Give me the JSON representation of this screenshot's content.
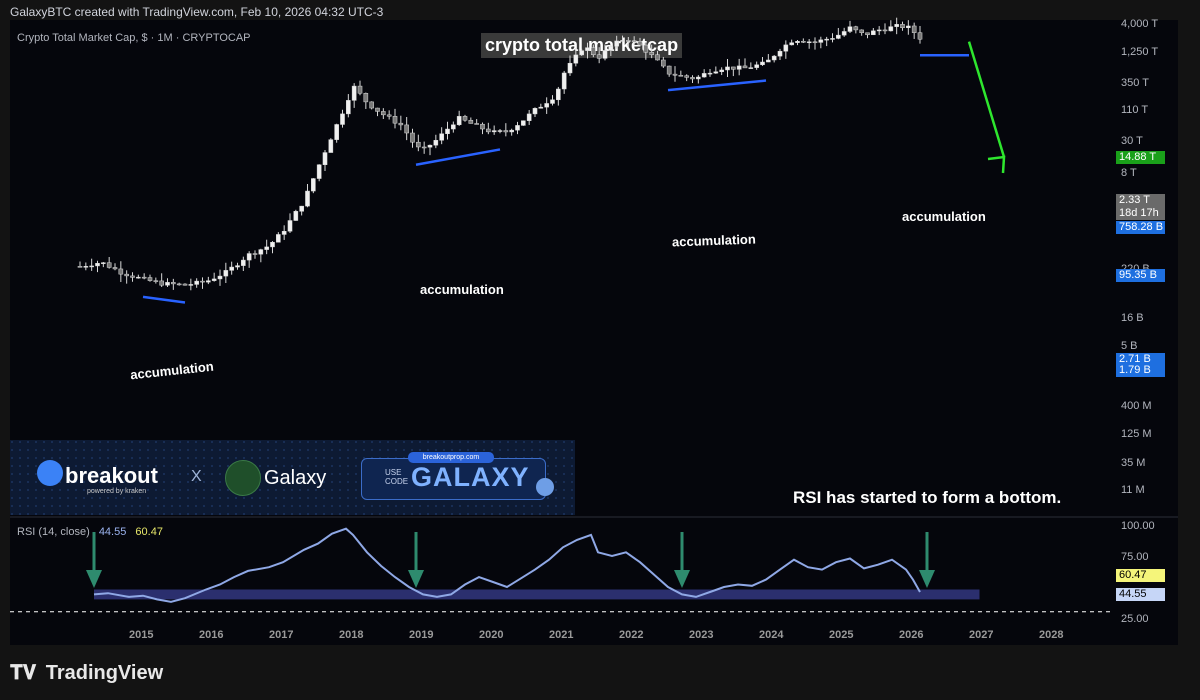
{
  "header": {
    "credit": "GalaxyBTC created with TradingView.com, Feb 10, 2026 04:32 UTC-3"
  },
  "symbol_line": "Crypto Total Market Cap, $ · 1M · CRYPTOCAP",
  "title": "crypto total marketcap",
  "annotations": {
    "accumulation": [
      "accumulation",
      "accumulation",
      "accumulation",
      "accumulation"
    ],
    "rsi_note": "RSI has started to form a bottom."
  },
  "banner": {
    "brand_left": "breakout",
    "powered_by": "powered by kraken",
    "x": "X",
    "brand_right": "Galaxy",
    "url": "breakoutprop.com",
    "use_code": "USE CODE",
    "code": "GALAXY"
  },
  "rsi": {
    "label": "RSI (14, close)",
    "value_1": "44.55",
    "value_2": "60.47"
  },
  "footer": {
    "brand": "TradingView"
  },
  "colors": {
    "candle": "#d8d8d8",
    "accumulation_line": "#2962ff",
    "arrow_green": "#2ee62e",
    "rsi_line": "#8fa8e6",
    "rsi_fill": "#2b2f6e",
    "arrow_rsi": "#2e8b6e"
  },
  "chart_data": [
    {
      "type": "candlestick",
      "title": "crypto total marketcap",
      "scale": "log",
      "price_axis_labels": [
        "4,000 T",
        "1,250 T",
        "350 T",
        "110 T",
        "30 T",
        "8 T",
        "220 B",
        "16 B",
        "5 B",
        "400 M",
        "125 M",
        "35 M",
        "11 M"
      ],
      "price_tags": [
        {
          "text": "14.88 T",
          "bg": "#1aa01a",
          "fg": "#ffffff"
        },
        {
          "text": "2.33 T",
          "bg": "#6a6a6a",
          "fg": "#ffffff"
        },
        {
          "text": "18d 17h",
          "bg": "#6a6a6a",
          "fg": "#ffffff"
        },
        {
          "text": "758.28 B",
          "bg": "#1e6fe0",
          "fg": "#ffffff"
        },
        {
          "text": "95.35 B",
          "bg": "#1e6fe0",
          "fg": "#ffffff"
        },
        {
          "text": "2.71 B",
          "bg": "#1e6fe0",
          "fg": "#ffffff"
        },
        {
          "text": "1.79 B",
          "bg": "#1e6fe0",
          "fg": "#ffffff"
        }
      ],
      "x_labels": [
        "2015",
        "2016",
        "2017",
        "2018",
        "2019",
        "2020",
        "2021",
        "2022",
        "2023",
        "2024",
        "2025",
        "2026",
        "2027",
        "2028"
      ],
      "close_path": [
        [
          2014.1,
          5.0
        ],
        [
          2014.4,
          5.6
        ],
        [
          2014.7,
          4.2
        ],
        [
          2015.0,
          3.5
        ],
        [
          2015.3,
          3.1
        ],
        [
          2015.6,
          3.0
        ],
        [
          2015.9,
          3.3
        ],
        [
          2016.2,
          4.3
        ],
        [
          2016.5,
          6.8
        ],
        [
          2016.8,
          8.8
        ],
        [
          2017.0,
          13
        ],
        [
          2017.3,
          30
        ],
        [
          2017.5,
          75
        ],
        [
          2017.7,
          180
        ],
        [
          2017.9,
          420
        ],
        [
          2018.0,
          700
        ],
        [
          2018.2,
          440
        ],
        [
          2018.4,
          330
        ],
        [
          2018.7,
          235
        ],
        [
          2018.9,
          130
        ],
        [
          2019.0,
          120
        ],
        [
          2019.2,
          160
        ],
        [
          2019.5,
          290
        ],
        [
          2019.8,
          225
        ],
        [
          2020.0,
          195
        ],
        [
          2020.2,
          200
        ],
        [
          2020.4,
          260
        ],
        [
          2020.6,
          360
        ],
        [
          2020.9,
          540
        ],
        [
          2021.0,
          950
        ],
        [
          2021.3,
          2100
        ],
        [
          2021.5,
          1500
        ],
        [
          2021.7,
          2100
        ],
        [
          2021.9,
          2600
        ],
        [
          2022.1,
          2100
        ],
        [
          2022.3,
          1500
        ],
        [
          2022.5,
          1000
        ],
        [
          2022.7,
          900
        ],
        [
          2022.9,
          850
        ],
        [
          2023.1,
          1050
        ],
        [
          2023.3,
          1150
        ],
        [
          2023.6,
          1130
        ],
        [
          2023.9,
          1300
        ],
        [
          2024.1,
          1900
        ],
        [
          2024.3,
          2500
        ],
        [
          2024.6,
          2300
        ],
        [
          2024.9,
          2700
        ],
        [
          2025.1,
          3400
        ],
        [
          2025.3,
          2800
        ],
        [
          2025.5,
          3200
        ],
        [
          2025.8,
          3600
        ],
        [
          2025.95,
          3400
        ],
        [
          2026.1,
          2600
        ]
      ],
      "accumulation_zones": [
        [
          2015.0,
          2015.6
        ],
        [
          2018.9,
          2020.1
        ],
        [
          2022.5,
          2023.9
        ],
        [
          2026.1,
          2026.8
        ]
      ],
      "projection_target": "14.88 T"
    },
    {
      "type": "line",
      "title": "RSI (14, close)",
      "y_axis_labels": [
        "100.00",
        "75.00",
        "25.00"
      ],
      "rsi_tags": [
        {
          "text": "60.47",
          "bg": "#f5f57a",
          "fg": "#000000"
        },
        {
          "text": "44.55",
          "bg": "#c6d6f7",
          "fg": "#000000"
        }
      ],
      "ylim": [
        25,
        100
      ],
      "points": [
        [
          2014.3,
          44
        ],
        [
          2014.5,
          45
        ],
        [
          2014.8,
          42
        ],
        [
          2015.0,
          43
        ],
        [
          2015.2,
          40
        ],
        [
          2015.4,
          38
        ],
        [
          2015.6,
          41
        ],
        [
          2015.9,
          48
        ],
        [
          2016.1,
          52
        ],
        [
          2016.3,
          58
        ],
        [
          2016.5,
          63
        ],
        [
          2016.8,
          66
        ],
        [
          2017.0,
          70
        ],
        [
          2017.3,
          80
        ],
        [
          2017.5,
          85
        ],
        [
          2017.7,
          93
        ],
        [
          2017.9,
          97
        ],
        [
          2018.0,
          92
        ],
        [
          2018.2,
          78
        ],
        [
          2018.4,
          67
        ],
        [
          2018.6,
          58
        ],
        [
          2018.8,
          50
        ],
        [
          2019.0,
          44
        ],
        [
          2019.2,
          42
        ],
        [
          2019.4,
          44
        ],
        [
          2019.6,
          52
        ],
        [
          2019.8,
          58
        ],
        [
          2020.0,
          54
        ],
        [
          2020.2,
          50
        ],
        [
          2020.4,
          57
        ],
        [
          2020.6,
          64
        ],
        [
          2020.8,
          72
        ],
        [
          2021.0,
          82
        ],
        [
          2021.2,
          88
        ],
        [
          2021.4,
          92
        ],
        [
          2021.5,
          78
        ],
        [
          2021.7,
          75
        ],
        [
          2021.9,
          78
        ],
        [
          2022.1,
          70
        ],
        [
          2022.3,
          60
        ],
        [
          2022.5,
          50
        ],
        [
          2022.7,
          44
        ],
        [
          2022.9,
          42
        ],
        [
          2023.1,
          46
        ],
        [
          2023.3,
          50
        ],
        [
          2023.5,
          52
        ],
        [
          2023.7,
          51
        ],
        [
          2023.9,
          56
        ],
        [
          2024.1,
          64
        ],
        [
          2024.3,
          72
        ],
        [
          2024.5,
          66
        ],
        [
          2024.7,
          64
        ],
        [
          2024.9,
          70
        ],
        [
          2025.1,
          73
        ],
        [
          2025.3,
          65
        ],
        [
          2025.5,
          68
        ],
        [
          2025.7,
          72
        ],
        [
          2025.9,
          64
        ],
        [
          2026.0,
          56
        ],
        [
          2026.1,
          46
        ]
      ],
      "oversold_band": [
        40,
        48
      ],
      "arrows_at": [
        2014.3,
        2018.9,
        2022.7,
        2026.2
      ]
    }
  ]
}
